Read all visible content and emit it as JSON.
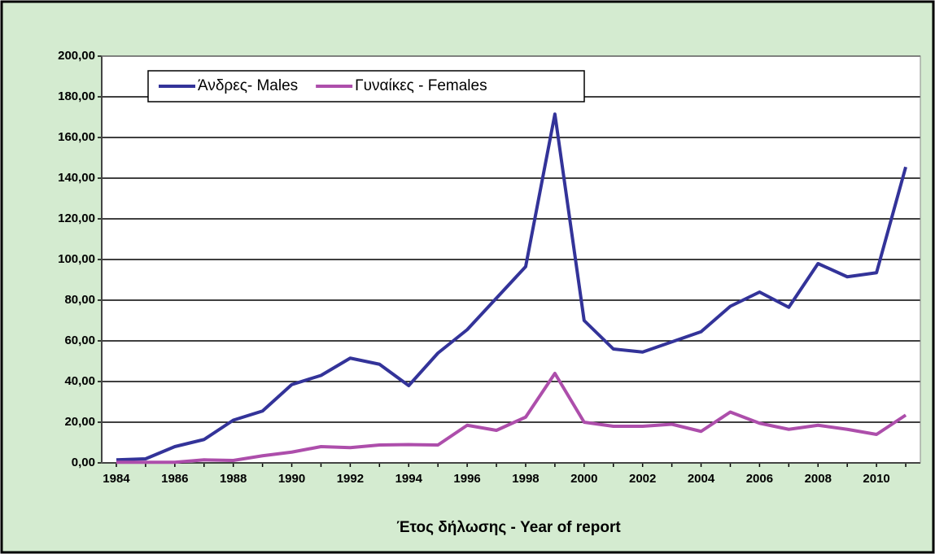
{
  "chart_data": {
    "type": "line",
    "x_label": "Έτος δήλωσης - Year of report",
    "x": [
      1984,
      1985,
      1986,
      1987,
      1988,
      1989,
      1990,
      1991,
      1992,
      1993,
      1994,
      1995,
      1996,
      1997,
      1998,
      1999,
      2000,
      2001,
      2002,
      2003,
      2004,
      2005,
      2006,
      2007,
      2008,
      2009,
      2010,
      2011
    ],
    "series": [
      {
        "name": "Άνδρες- Males",
        "color": "#333399",
        "values": [
          1.5,
          2,
          8,
          11.5,
          21,
          25.5,
          38.5,
          43,
          51.5,
          48.5,
          38,
          54,
          65.5,
          81,
          96.5,
          171.5,
          70,
          56,
          54.5,
          59.5,
          64.5,
          77,
          84,
          76.5,
          98,
          91.5,
          93.5,
          145.5
        ]
      },
      {
        "name": "Γυναίκες - Females",
        "color": "#ad4eab",
        "values": [
          0.3,
          0.3,
          0.3,
          1.5,
          1.2,
          3.5,
          5.3,
          8,
          7.5,
          8.8,
          9,
          8.8,
          18.5,
          16,
          22.5,
          44,
          20,
          18,
          18,
          19,
          15.5,
          25,
          19.5,
          16.5,
          18.5,
          16.5,
          14,
          23.5
        ]
      }
    ],
    "xlim": [
      1983.5,
      2011.5
    ],
    "xticks": [
      1984,
      1986,
      1988,
      1990,
      1992,
      1994,
      1996,
      1998,
      2000,
      2002,
      2004,
      2006,
      2008,
      2010
    ],
    "ylim": [
      0,
      200
    ],
    "yticks": [
      {
        "value": 0,
        "label": "0,00"
      },
      {
        "value": 20,
        "label": "20,00"
      },
      {
        "value": 40,
        "label": "40,00"
      },
      {
        "value": 60,
        "label": "60,00"
      },
      {
        "value": 80,
        "label": "80,00"
      },
      {
        "value": 100,
        "label": "100,00"
      },
      {
        "value": 120,
        "label": "120,00"
      },
      {
        "value": 140,
        "label": "140,00"
      },
      {
        "value": 160,
        "label": "160,00"
      },
      {
        "value": 180,
        "label": "180,00"
      },
      {
        "value": 200,
        "label": "200,00"
      }
    ],
    "grid": true,
    "legend": "top-left"
  }
}
